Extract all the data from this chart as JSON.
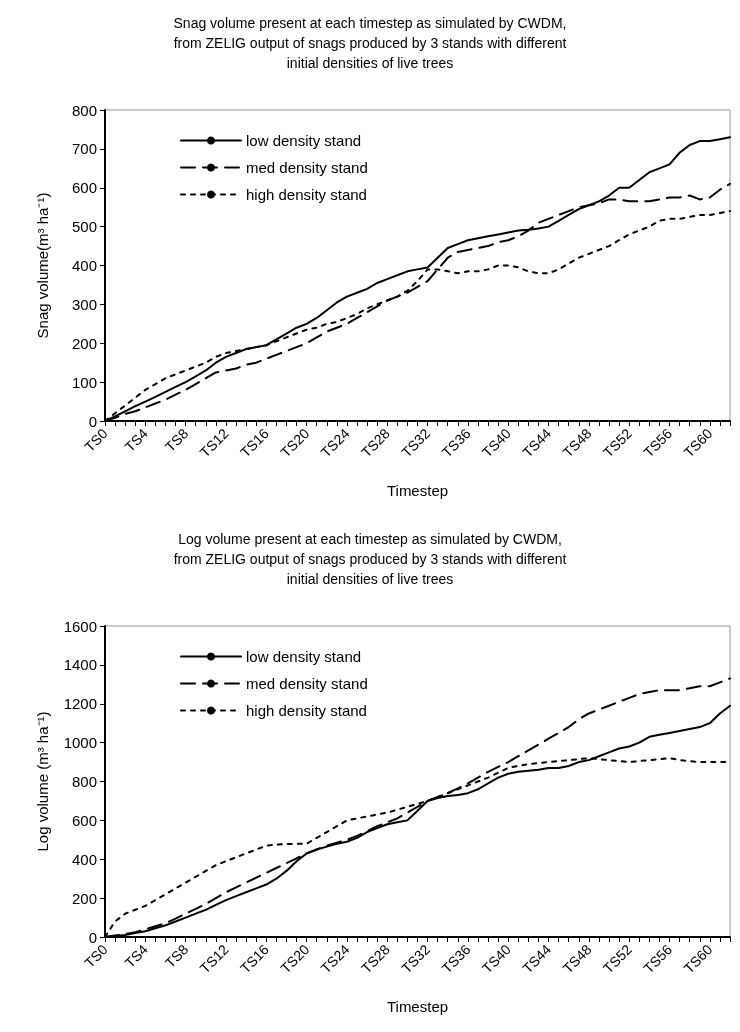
{
  "chart_data": [
    {
      "type": "line",
      "title": "Snag volume present at each timestep as simulated by CWDM,\nfrom ZELIG output of snags produced by 3 stands with different\ninitial densities of live trees",
      "xlabel": "Timestep",
      "ylabel": "Snag volume(m³ ha⁻¹)",
      "categories": [
        "TS0",
        null,
        null,
        null,
        "TS4",
        null,
        null,
        null,
        "TS8",
        null,
        null,
        null,
        "TS12",
        null,
        null,
        null,
        "TS16",
        null,
        null,
        null,
        "TS20",
        null,
        null,
        null,
        "TS24",
        null,
        null,
        null,
        "TS28",
        null,
        null,
        null,
        "TS32",
        null,
        null,
        null,
        "TS36",
        null,
        null,
        null,
        "TS40",
        null,
        null,
        null,
        "TS44",
        null,
        null,
        null,
        "TS48",
        null,
        null,
        null,
        "TS52",
        null,
        null,
        null,
        "TS56",
        null,
        null,
        null,
        "TS60",
        null,
        null
      ],
      "ylim": [
        0,
        800
      ],
      "yticks": [
        0,
        100,
        200,
        300,
        400,
        500,
        600,
        700,
        800
      ],
      "grid": false,
      "legend": "top left",
      "marker": "none",
      "series": [
        {
          "name": "low density stand",
          "color": "#000000",
          "line_style": "solid",
          "values": [
            0,
            12,
            25,
            38,
            50,
            62,
            75,
            88,
            100,
            115,
            130,
            150,
            165,
            175,
            185,
            190,
            195,
            210,
            225,
            240,
            250,
            265,
            285,
            305,
            320,
            330,
            340,
            355,
            365,
            375,
            385,
            390,
            395,
            420,
            445,
            455,
            465,
            470,
            475,
            480,
            485,
            490,
            492,
            495,
            500,
            515,
            530,
            545,
            555,
            565,
            580,
            600,
            600,
            620,
            640,
            650,
            660,
            690,
            710,
            720,
            720,
            725,
            730
          ]
        },
        {
          "name": "med density stand",
          "color": "#000000",
          "line_style": "dashed",
          "values": [
            0,
            8,
            18,
            25,
            35,
            45,
            55,
            68,
            80,
            95,
            110,
            125,
            130,
            135,
            145,
            150,
            160,
            170,
            180,
            190,
            200,
            215,
            230,
            240,
            250,
            265,
            280,
            295,
            310,
            320,
            330,
            345,
            360,
            390,
            420,
            435,
            440,
            445,
            450,
            460,
            465,
            475,
            490,
            510,
            520,
            530,
            540,
            550,
            555,
            560,
            570,
            570,
            565,
            565,
            565,
            570,
            575,
            575,
            580,
            570,
            575,
            595,
            610
          ]
        },
        {
          "name": "high density stand",
          "color": "#000000",
          "line_style": "dotted",
          "values": [
            0,
            20,
            40,
            60,
            80,
            95,
            110,
            120,
            130,
            140,
            150,
            165,
            175,
            180,
            185,
            190,
            195,
            205,
            215,
            225,
            235,
            240,
            250,
            255,
            265,
            275,
            290,
            300,
            310,
            320,
            335,
            360,
            390,
            390,
            385,
            380,
            385,
            385,
            390,
            400,
            400,
            395,
            385,
            380,
            380,
            390,
            405,
            420,
            430,
            440,
            450,
            465,
            480,
            490,
            500,
            515,
            520,
            520,
            525,
            530,
            530,
            535,
            540
          ]
        }
      ]
    },
    {
      "type": "line",
      "title": "Log volume present at each timestep as simulated by CWDM,\nfrom ZELIG output of snags produced by 3 stands with different\ninitial densities of live trees",
      "xlabel": "Timestep",
      "ylabel": "Log volume (m³ ha⁻¹)",
      "categories": [
        "TS0",
        null,
        null,
        null,
        "TS4",
        null,
        null,
        null,
        "TS8",
        null,
        null,
        null,
        "TS12",
        null,
        null,
        null,
        "TS16",
        null,
        null,
        null,
        "TS20",
        null,
        null,
        null,
        "TS24",
        null,
        null,
        null,
        "TS28",
        null,
        null,
        null,
        "TS32",
        null,
        null,
        null,
        "TS36",
        null,
        null,
        null,
        "TS40",
        null,
        null,
        null,
        "TS44",
        null,
        null,
        null,
        "TS48",
        null,
        null,
        null,
        "TS52",
        null,
        null,
        null,
        "TS56",
        null,
        null,
        null,
        "TS60",
        null,
        null
      ],
      "ylim": [
        0,
        1600
      ],
      "yticks": [
        0,
        200,
        400,
        600,
        800,
        1000,
        1200,
        1400,
        1600
      ],
      "grid": false,
      "legend": "top left",
      "marker": "none",
      "series": [
        {
          "name": "low density stand",
          "color": "#000000",
          "line_style": "solid",
          "values": [
            0,
            5,
            10,
            20,
            30,
            45,
            60,
            80,
            100,
            120,
            140,
            165,
            190,
            210,
            230,
            250,
            270,
            300,
            340,
            390,
            430,
            450,
            465,
            480,
            490,
            510,
            540,
            560,
            580,
            590,
            600,
            650,
            700,
            715,
            725,
            730,
            740,
            760,
            790,
            820,
            840,
            850,
            855,
            860,
            870,
            870,
            880,
            900,
            910,
            930,
            950,
            970,
            980,
            1000,
            1030,
            1040,
            1050,
            1060,
            1070,
            1080,
            1100,
            1150,
            1190
          ]
        },
        {
          "name": "med density stand",
          "color": "#000000",
          "line_style": "dashed",
          "values": [
            0,
            8,
            15,
            25,
            40,
            55,
            70,
            95,
            120,
            145,
            170,
            200,
            230,
            255,
            280,
            305,
            330,
            355,
            380,
            405,
            430,
            450,
            470,
            485,
            500,
            520,
            545,
            570,
            590,
            610,
            640,
            670,
            700,
            720,
            740,
            765,
            790,
            820,
            850,
            875,
            900,
            930,
            960,
            990,
            1020,
            1050,
            1080,
            1120,
            1150,
            1170,
            1190,
            1210,
            1230,
            1250,
            1260,
            1270,
            1270,
            1270,
            1280,
            1290,
            1290,
            1310,
            1330
          ]
        },
        {
          "name": "high density stand",
          "color": "#000000",
          "line_style": "dotted",
          "values": [
            0,
            80,
            120,
            140,
            160,
            190,
            220,
            250,
            280,
            310,
            340,
            370,
            390,
            410,
            430,
            450,
            470,
            475,
            478,
            480,
            480,
            510,
            540,
            570,
            600,
            610,
            620,
            630,
            640,
            655,
            670,
            685,
            700,
            720,
            740,
            760,
            780,
            800,
            820,
            845,
            870,
            880,
            890,
            895,
            900,
            905,
            910,
            915,
            920,
            915,
            910,
            905,
            900,
            905,
            910,
            915,
            920,
            910,
            905,
            900,
            900,
            900,
            900
          ]
        }
      ]
    }
  ]
}
